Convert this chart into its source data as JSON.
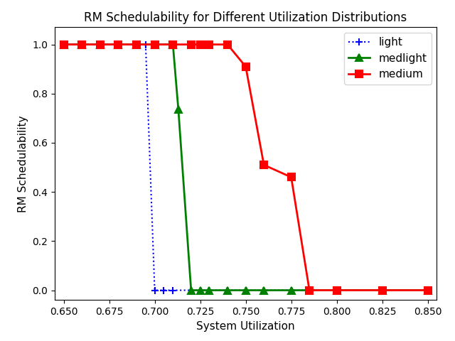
{
  "title": "RM Schedulability for Different Utilization Distributions",
  "xlabel": "System Utilization",
  "ylabel": "RM Schedulability",
  "xlim": [
    0.645,
    0.855
  ],
  "ylim": [
    -0.04,
    1.07
  ],
  "xticks": [
    0.65,
    0.675,
    0.7,
    0.725,
    0.75,
    0.775,
    0.8,
    0.825,
    0.85
  ],
  "yticks": [
    0.0,
    0.2,
    0.4,
    0.6,
    0.8,
    1.0
  ],
  "series": [
    {
      "label": "light",
      "color": "blue",
      "linestyle": "dotted",
      "marker": "+",
      "markersize": 7,
      "linewidth": 1.5,
      "markeredgewidth": 1.5,
      "x": [
        0.65,
        0.66,
        0.67,
        0.68,
        0.69,
        0.695,
        0.7,
        0.705,
        0.71,
        0.725,
        0.75,
        0.775,
        0.8,
        0.825,
        0.85
      ],
      "y": [
        1.0,
        1.0,
        1.0,
        1.0,
        1.0,
        1.0,
        0.0,
        0.0,
        0.0,
        0.0,
        0.0,
        0.0,
        0.0,
        0.0,
        0.0
      ]
    },
    {
      "label": "medlight",
      "color": "green",
      "linestyle": "solid",
      "marker": "^",
      "markersize": 7,
      "linewidth": 2.0,
      "markeredgewidth": 1.5,
      "x": [
        0.65,
        0.66,
        0.67,
        0.68,
        0.69,
        0.7,
        0.71,
        0.713,
        0.72,
        0.725,
        0.73,
        0.74,
        0.75,
        0.76,
        0.775,
        0.8,
        0.825,
        0.85
      ],
      "y": [
        1.0,
        1.0,
        1.0,
        1.0,
        1.0,
        1.0,
        1.0,
        0.735,
        0.0,
        0.0,
        0.0,
        0.0,
        0.0,
        0.0,
        0.0,
        0.0,
        0.0,
        0.0
      ]
    },
    {
      "label": "medium",
      "color": "red",
      "linestyle": "solid",
      "marker": "s",
      "markersize": 7,
      "linewidth": 2.0,
      "markeredgewidth": 1.5,
      "x": [
        0.65,
        0.66,
        0.67,
        0.68,
        0.69,
        0.7,
        0.71,
        0.72,
        0.725,
        0.73,
        0.74,
        0.75,
        0.76,
        0.775,
        0.785,
        0.8,
        0.825,
        0.85
      ],
      "y": [
        1.0,
        1.0,
        1.0,
        1.0,
        1.0,
        1.0,
        1.0,
        1.0,
        1.0,
        1.0,
        1.0,
        0.91,
        0.51,
        0.46,
        0.0,
        0.0,
        0.0,
        0.0
      ]
    }
  ],
  "background_color": "white",
  "legend_loc": "upper right",
  "title_fontsize": 12,
  "label_fontsize": 11,
  "legend_fontsize": 11,
  "tick_fontsize": 10
}
